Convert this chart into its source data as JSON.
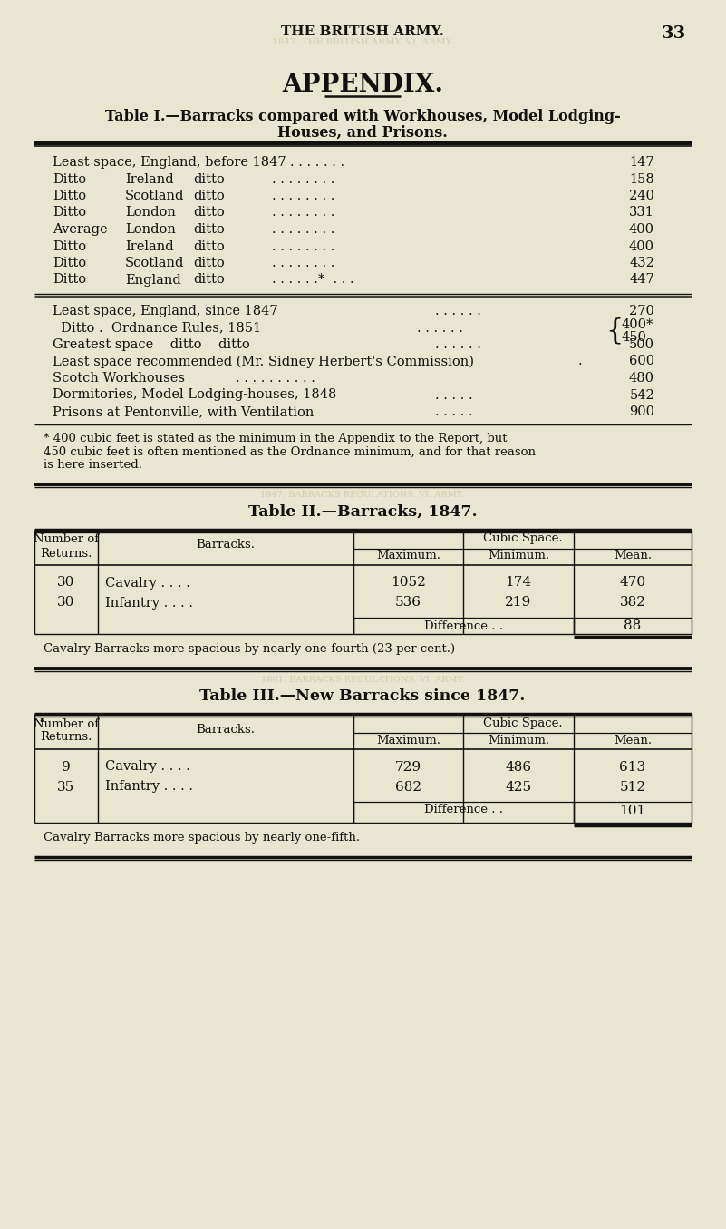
{
  "bg_color": "#e8e5d0",
  "text_color": "#111111",
  "header": "THE BRITISH ARMY.",
  "page_num": "33",
  "appendix": "APPENDIX.",
  "t1_title1": "Table I.—Barracks compared with Workhouses, Model Lodging-",
  "t1_title2": "Houses, and Prisons.",
  "t1_rows_a": [
    {
      "col1": "Least space, England, before 1847",
      "col2": "",
      "col3": "",
      "val": "147"
    },
    {
      "col1": "Ditto",
      "col2": "Ireland",
      "col3": "ditto",
      "val": "158"
    },
    {
      "col1": "Ditto",
      "col2": "Scotland",
      "col3": "ditto",
      "val": "240"
    },
    {
      "col1": "Ditto",
      "col2": "London",
      "col3": "ditto",
      "val": "331"
    },
    {
      "col1": "Average",
      "col2": "London",
      "col3": "ditto",
      "val": "400"
    },
    {
      "col1": "Ditto",
      "col2": "Ireland",
      "col3": "ditto",
      "val": "400"
    },
    {
      "col1": "Ditto",
      "col2": "Scotland",
      "col3": "ditto",
      "val": "432"
    },
    {
      "col1": "Ditto",
      "col2": "England",
      "col3": "ditto",
      "val": "447",
      "star": true
    }
  ],
  "t1_rows_b": [
    {
      "label": "Least space, England, since 1847",
      "dots": ". . . . . .",
      "val": "270"
    },
    {
      "label": "  Ditto .  Ordnance Rules, 1851",
      "dots": ". . . . . .",
      "val_brace": [
        "400*",
        "450"
      ]
    },
    {
      "label": "Greatest space    ditto    ditto",
      "dots": ". . . . . .",
      "val": "500"
    },
    {
      "label": "Least space recommended (Mr. Sidney Herbert's Commission)",
      "dots": ".",
      "val": "600"
    },
    {
      "label": "Scotch Workhouses",
      "dots": ". . . . . . . . . .",
      "val": "480"
    },
    {
      "label": "Dormitories, Model Lodging-houses, 1848",
      "dots": ". . . . .",
      "val": "542"
    },
    {
      "label": "Prisons at Pentonville, with Ventilation",
      "dots": ". . . . .",
      "val": "900"
    }
  ],
  "footnote_lines": [
    "* 400 cubic feet is stated as the minimum in the Appendix to the Report, but",
    "450 cubic feet is often mentioned as the Ordnance minimum, and for that reason",
    "is here inserted."
  ],
  "t2_title": "Table II.—Barracks, 1847.",
  "t2_rows": [
    {
      "num": "30",
      "type": "Cavalry",
      "max": "1052",
      "min": "174",
      "mean": "470"
    },
    {
      "num": "30",
      "type": "Infantry",
      "max": "536",
      "min": "219",
      "mean": "382"
    }
  ],
  "t2_diff": "88",
  "t2_note": "Cavalry Barracks more spacious by nearly one-fourth (23 per cent.)",
  "t3_title": "Table III.—New Barracks since 1847.",
  "t3_rows": [
    {
      "num": "9",
      "type": "Cavalry",
      "max": "729",
      "min": "486",
      "mean": "613"
    },
    {
      "num": "35",
      "type": "Infantry",
      "max": "682",
      "min": "425",
      "mean": "512"
    }
  ],
  "t3_diff": "101",
  "t3_note": "Cavalry Barracks more spacious by nearly one-fifth.",
  "watermark1": "1847. BARRACKS REGULATIONS. VI. ARMY.",
  "watermark2": "1861. BARRACKS REGULATIONS. VI. ARMY."
}
